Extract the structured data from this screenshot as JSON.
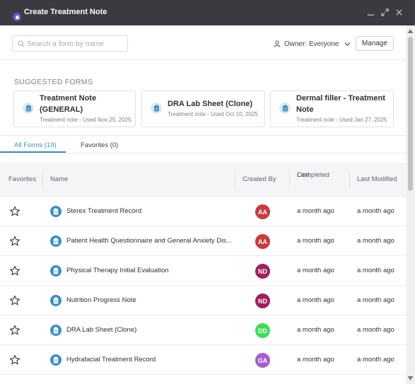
{
  "window": {
    "title": "Create Treatment Note",
    "icons": {
      "app": "app-icon",
      "minimize": "minimize-icon",
      "maximize": "maximize-icon",
      "close": "close-icon"
    }
  },
  "toolbar": {
    "search_placeholder": "Search a form by name",
    "search_value": "",
    "owner_label": "Owner: Everyone",
    "manage_label": "Manage"
  },
  "suggested": {
    "heading": "SUGGESTED FORMS",
    "cards": [
      {
        "title_line1": "Treatment Note",
        "title_line2": "(GENERAL)",
        "subtitle": "Treatment note - Used Nov 25, 2025"
      },
      {
        "title_line1": "DRA Lab Sheet (Clone)",
        "title_line2": "",
        "subtitle": "Treatment note - Used Oct 10, 2025"
      },
      {
        "title_line1": "Dermal filler - Treatment",
        "title_line2": "Note",
        "subtitle": "Treatment note - Used Jan 27, 2025"
      }
    ]
  },
  "tabs": [
    {
      "label": "All Forms (19)",
      "active": true
    },
    {
      "label": "Favorites (0)",
      "active": false
    }
  ],
  "table": {
    "headers": {
      "favorites": "Favorites",
      "name": "Name",
      "created_by": "Created By",
      "last_completed_line1": "Last",
      "last_completed_line2": "Completed",
      "last_modified": "Last Modified"
    },
    "rows": [
      {
        "name": "Sterex Treatment Record",
        "creator": "AA",
        "creator_color": "#c93a3e",
        "last_completed": "a month ago",
        "last_modified": "a month ago"
      },
      {
        "name": "Patient Health Questionnaire and General Anxiety Dis...",
        "creator": "AA",
        "creator_color": "#c93a3e",
        "last_completed": "a month ago",
        "last_modified": "a month ago"
      },
      {
        "name": "Physical Therapy Initial Evaluation",
        "creator": "ND",
        "creator_color": "#a11f5e",
        "last_completed": "a month ago",
        "last_modified": "a month ago"
      },
      {
        "name": "Nutrition Progress Note",
        "creator": "ND",
        "creator_color": "#a11f5e",
        "last_completed": "a month ago",
        "last_modified": "a month ago"
      },
      {
        "name": "DRA Lab Sheet (Clone)",
        "creator": "DD",
        "creator_color": "#3fdc55",
        "last_completed": "a month ago",
        "last_modified": "a month ago"
      },
      {
        "name": "Hydrafacial Treatment Record",
        "creator": "GA",
        "creator_color": "#a25fd1",
        "last_completed": "a month ago",
        "last_modified": "a month ago"
      }
    ]
  },
  "colors": {
    "titlebar": "#3a3b41",
    "accent": "#3b8fc2",
    "header_bg": "#f4f5f7"
  }
}
